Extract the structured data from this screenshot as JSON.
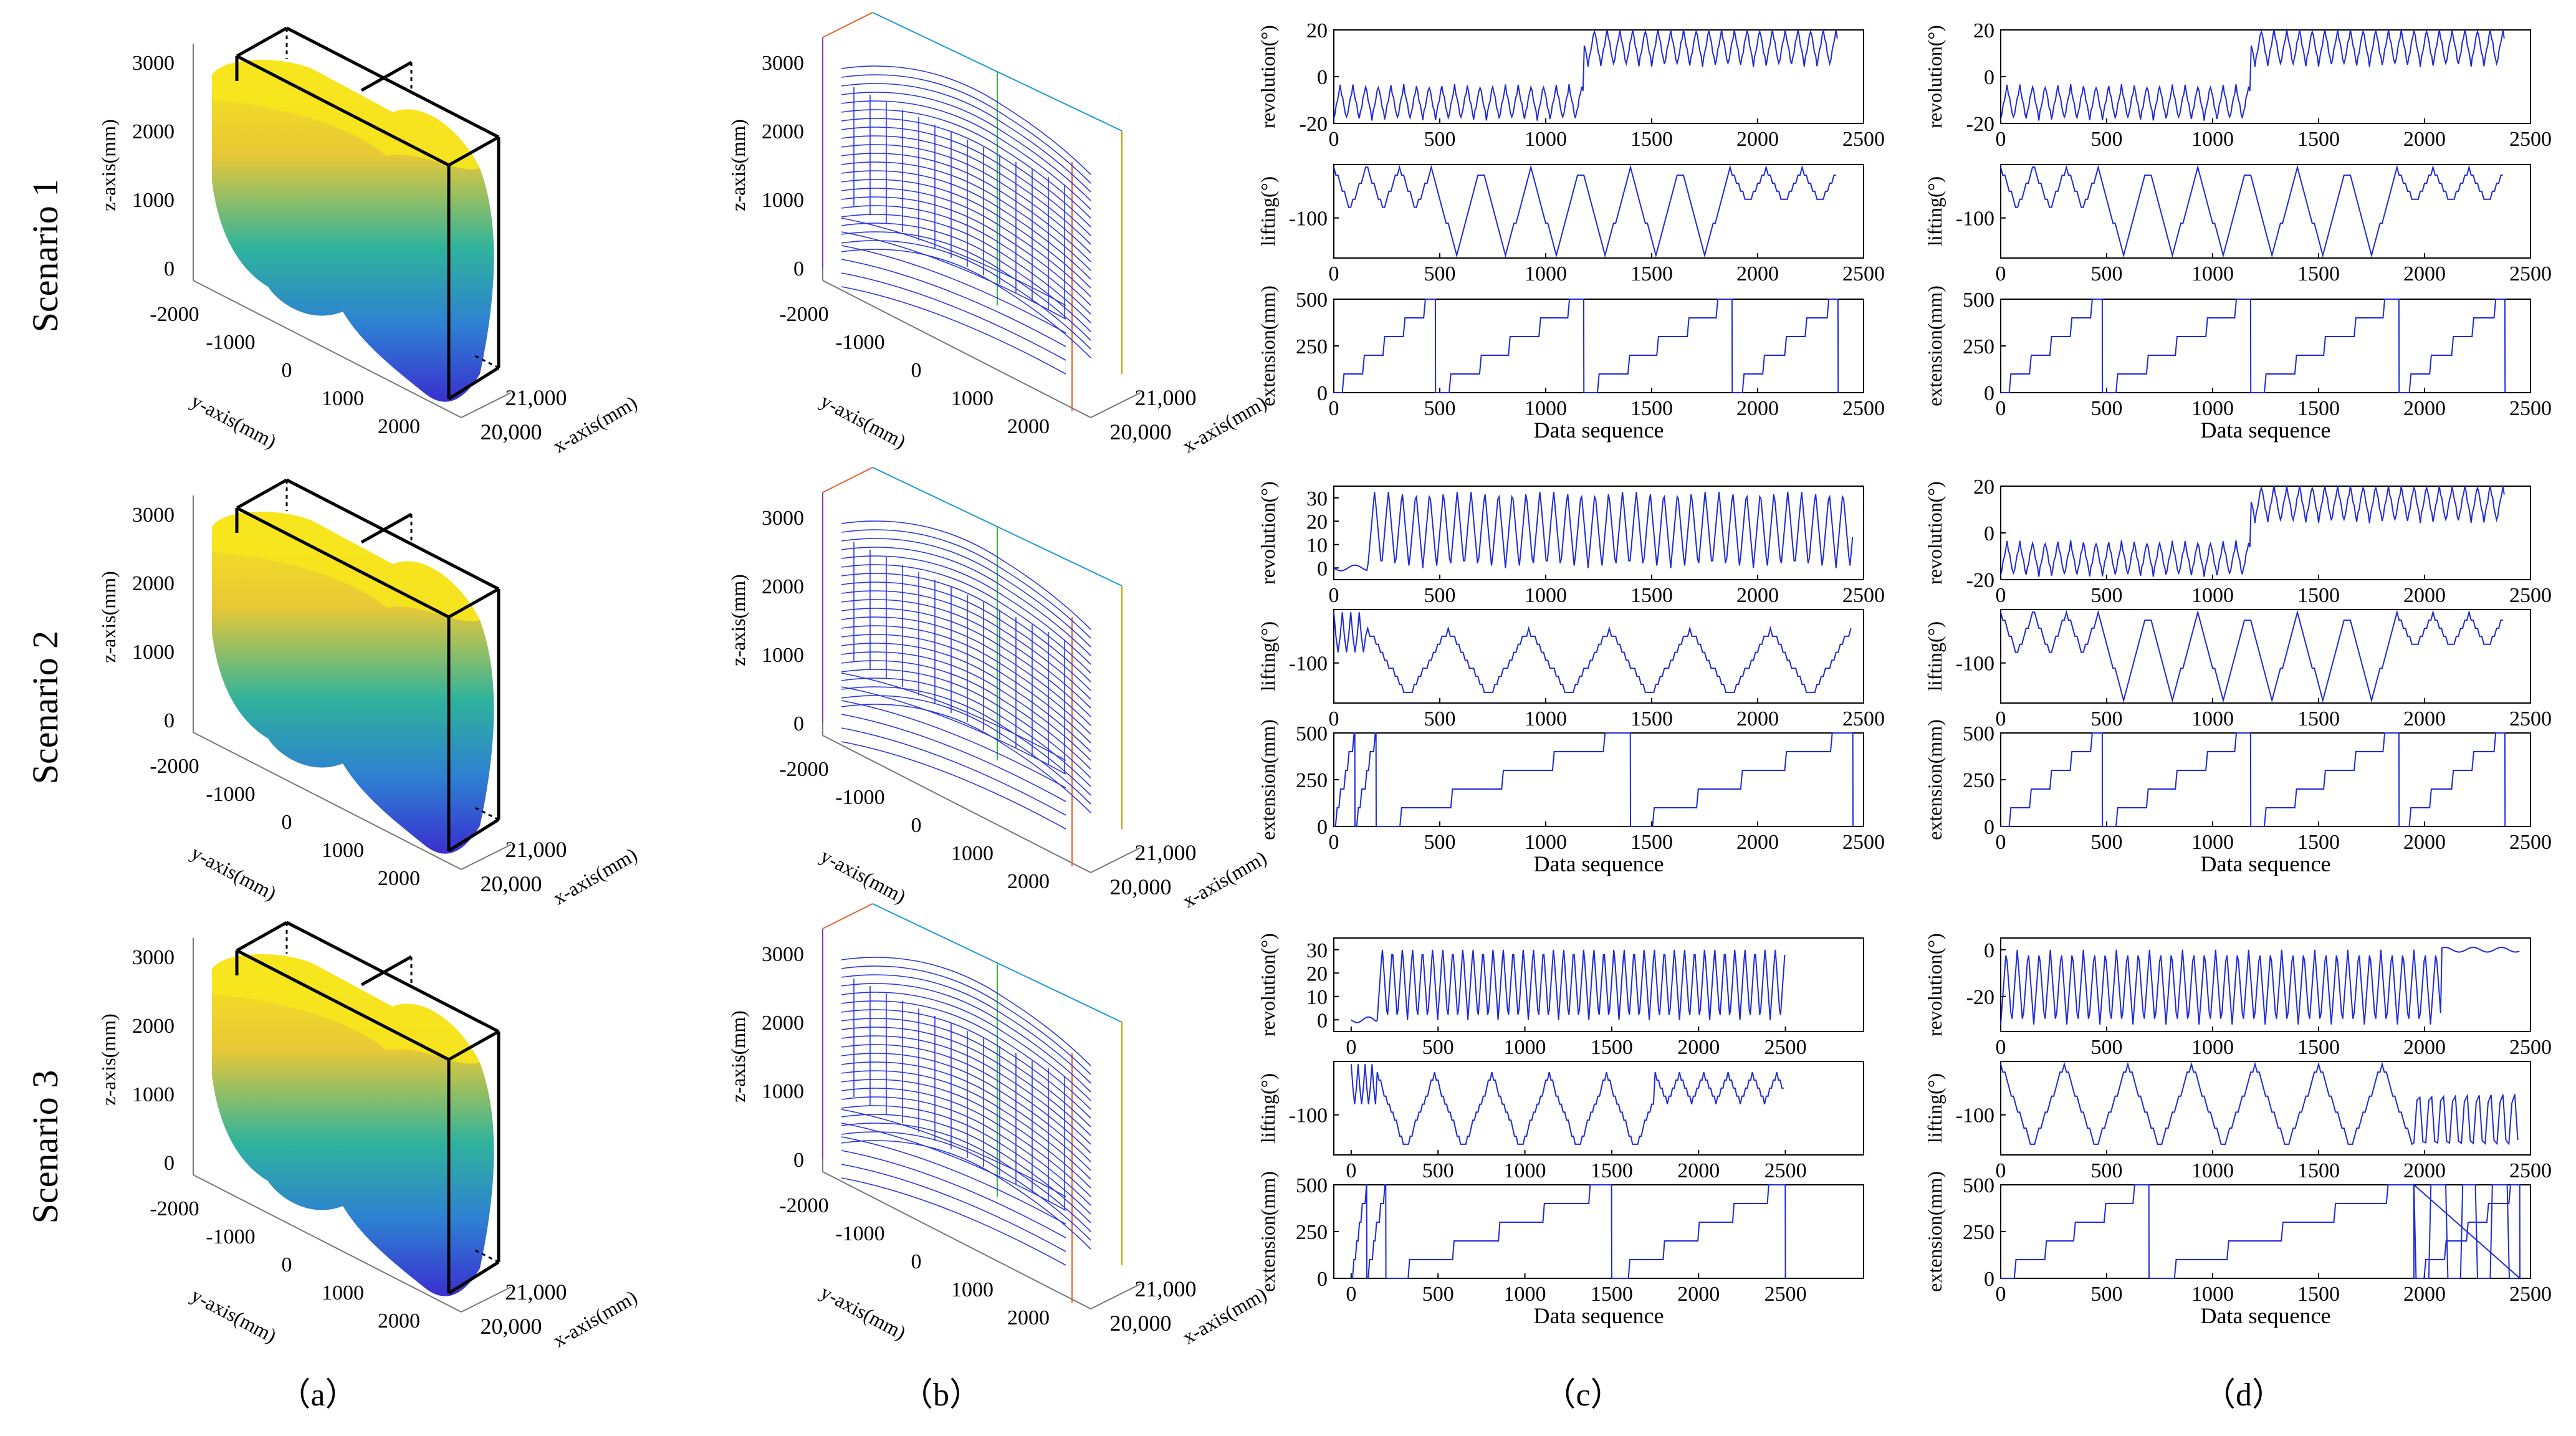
{
  "colors": {
    "trace": "#1f2bd6",
    "axis": "#000000",
    "surface_top": "#f5e51b",
    "surface_mid": "#21a8a0",
    "surface_bottom": "#3b3bcc",
    "line_blue": "#2a36e0"
  },
  "rows": [
    {
      "label": "Scenario 1"
    },
    {
      "label": "Scenario 2"
    },
    {
      "label": "Scenario 3"
    }
  ],
  "column_labels": [
    "（a）",
    "（b）",
    "（c）",
    "（d）"
  ],
  "axes3d": {
    "z_label": "z-axis(mm)",
    "y_label": "y-axis(mm)",
    "x_label": "x-axis(mm)",
    "z_ticks": [
      "0",
      "1000",
      "2000",
      "3000"
    ],
    "y_ticks": [
      "-2000",
      "-1000",
      "0",
      "1000",
      "2000"
    ],
    "x_ticks": [
      "20,000",
      "21,000"
    ]
  },
  "panel_b_x_labels": [
    "x-axis(mm)",
    "x-axis(mm)",
    "x-axis(mm)"
  ],
  "chart_data": [
    {
      "type": "line",
      "id": "c1",
      "xlabel": "Data sequence",
      "subplots": [
        {
          "ylabel": "revolution(°)",
          "xlim": [
            0,
            2500
          ],
          "ylim": [
            -20,
            20
          ],
          "yticks": [
            -20,
            0,
            20
          ],
          "pattern": "revo_step",
          "n": 2380,
          "step_at": 1180,
          "before": [
            -18,
            -4
          ],
          "after": [
            5,
            20
          ],
          "period": 60
        },
        {
          "ylabel": "lifting(°)",
          "xlim": [
            0,
            2500
          ],
          "ylim": [
            -160,
            -20
          ],
          "yticks": [
            -100
          ],
          "pattern": "lift",
          "n": 2380,
          "segments": [
            [
              0,
              460,
              -25,
              -85,
              155
            ],
            [
              460,
              1870,
              -25,
              -155,
              235
            ],
            [
              1870,
              2380,
              -25,
              -80,
              170
            ]
          ]
        },
        {
          "ylabel": "extension(mm)",
          "xlim": [
            0,
            2500
          ],
          "ylim": [
            0,
            500
          ],
          "yticks": [
            0,
            250,
            500
          ],
          "xticks": [
            0,
            500,
            1000,
            1500,
            2000,
            2500
          ],
          "pattern": "ext",
          "n": 2380,
          "resets": [
            0,
            480,
            1180,
            1880
          ]
        }
      ]
    },
    {
      "type": "line",
      "id": "d1",
      "xlabel": "Data sequence",
      "subplots": [
        {
          "ylabel": "revolution(°)",
          "xlim": [
            0,
            2500
          ],
          "ylim": [
            -20,
            20
          ],
          "yticks": [
            -20,
            0,
            20
          ],
          "pattern": "revo_step",
          "n": 2380,
          "step_at": 1180,
          "before": [
            -18,
            -4
          ],
          "after": [
            5,
            20
          ],
          "period": 60
        },
        {
          "ylabel": "lifting(°)",
          "xlim": [
            0,
            2500
          ],
          "ylim": [
            -160,
            -20
          ],
          "yticks": [
            -100
          ],
          "pattern": "lift",
          "n": 2380,
          "segments": [
            [
              0,
              460,
              -25,
              -85,
              155
            ],
            [
              460,
              1870,
              -25,
              -155,
              235
            ],
            [
              1870,
              2380,
              -25,
              -80,
              170
            ]
          ]
        },
        {
          "ylabel": "extension(mm)",
          "xlim": [
            0,
            2500
          ],
          "ylim": [
            0,
            500
          ],
          "yticks": [
            0,
            250,
            500
          ],
          "xticks": [
            0,
            500,
            1000,
            1500,
            2000,
            2500
          ],
          "pattern": "ext",
          "n": 2380,
          "resets": [
            0,
            480,
            1180,
            1880
          ]
        }
      ]
    },
    {
      "type": "line",
      "id": "c2",
      "xlabel": "Data sequence",
      "subplots": [
        {
          "ylabel": "revolution(°)",
          "xlim": [
            0,
            2500
          ],
          "ylim": [
            -5,
            35
          ],
          "yticks": [
            0,
            10,
            20,
            30
          ],
          "pattern": "revo_start",
          "n": 2450,
          "start_at": 160,
          "low": 0,
          "high": 33,
          "period": 65
        },
        {
          "ylabel": "lifting(°)",
          "xlim": [
            0,
            2500
          ],
          "ylim": [
            -160,
            -20
          ],
          "yticks": [
            -100
          ],
          "pattern": "lift",
          "n": 2450,
          "segments": [
            [
              0,
              160,
              -25,
              -90,
              40
            ],
            [
              160,
              2450,
              -50,
              -150,
              380
            ]
          ]
        },
        {
          "ylabel": "extension(mm)",
          "xlim": [
            0,
            2500
          ],
          "ylim": [
            0,
            500
          ],
          "yticks": [
            0,
            250,
            500
          ],
          "xticks": [
            0,
            500,
            1000,
            1500,
            2000,
            2500
          ],
          "pattern": "ext",
          "n": 2450,
          "resets": [
            0,
            100,
            200,
            1400,
            2450
          ],
          "slow": true
        }
      ]
    },
    {
      "type": "line",
      "id": "d2",
      "xlabel": "Data sequence",
      "subplots": [
        {
          "ylabel": "revolution(°)",
          "xlim": [
            0,
            2500
          ],
          "ylim": [
            -20,
            20
          ],
          "yticks": [
            -20,
            0,
            20
          ],
          "pattern": "revo_step",
          "n": 2380,
          "step_at": 1180,
          "before": [
            -18,
            -4
          ],
          "after": [
            5,
            20
          ],
          "period": 60
        },
        {
          "ylabel": "lifting(°)",
          "xlim": [
            0,
            2500
          ],
          "ylim": [
            -160,
            -20
          ],
          "yticks": [
            -100
          ],
          "pattern": "lift",
          "n": 2380,
          "segments": [
            [
              0,
              460,
              -25,
              -85,
              155
            ],
            [
              460,
              1870,
              -25,
              -155,
              235
            ],
            [
              1870,
              2380,
              -25,
              -80,
              170
            ]
          ]
        },
        {
          "ylabel": "extension(mm)",
          "xlim": [
            0,
            2500
          ],
          "ylim": [
            0,
            500
          ],
          "yticks": [
            0,
            250,
            500
          ],
          "xticks": [
            0,
            500,
            1000,
            1500,
            2000,
            2500
          ],
          "pattern": "ext",
          "n": 2380,
          "resets": [
            0,
            480,
            1180,
            1880
          ]
        }
      ]
    },
    {
      "type": "line",
      "id": "c3",
      "xlabel": "Data sequence",
      "subplots": [
        {
          "ylabel": "revolution(°)",
          "xlim": [
            -100,
            2950
          ],
          "ylim": [
            -5,
            35
          ],
          "yticks": [
            0,
            10,
            20,
            30
          ],
          "pattern": "revo_start",
          "n": 2500,
          "start_at": 150,
          "low": 0,
          "high": 31,
          "period": 58
        },
        {
          "ylabel": "lifting(°)",
          "xlim": [
            -100,
            2950
          ],
          "ylim": [
            -160,
            -20
          ],
          "yticks": [
            -100
          ],
          "pattern": "lift",
          "n": 2500,
          "segments": [
            [
              0,
              150,
              -25,
              -90,
              40
            ],
            [
              150,
              1750,
              -40,
              -150,
              330
            ],
            [
              1750,
              2500,
              -40,
              -80,
              140
            ]
          ]
        },
        {
          "ylabel": "extension(mm)",
          "xlim": [
            -100,
            2950
          ],
          "ylim": [
            0,
            500
          ],
          "yticks": [
            0,
            250,
            500
          ],
          "xticks": [
            0,
            500,
            1000,
            1500,
            2000,
            2500
          ],
          "pattern": "ext",
          "n": 2500,
          "resets": [
            0,
            90,
            200,
            1500,
            2500
          ],
          "slow": true
        }
      ]
    },
    {
      "type": "line",
      "id": "d3",
      "xlabel": "Data sequence",
      "subplots": [
        {
          "ylabel": "revolution(°)",
          "xlim": [
            0,
            2500
          ],
          "ylim": [
            -35,
            5
          ],
          "yticks": [
            -20,
            0
          ],
          "pattern": "revo_end",
          "n": 2450,
          "end_at": 2080,
          "low": -32,
          "high": 0,
          "period": 52
        },
        {
          "ylabel": "lifting(°)",
          "xlim": [
            0,
            2500
          ],
          "ylim": [
            -160,
            -20
          ],
          "yticks": [
            -100
          ],
          "pattern": "lift_noisy",
          "n": 2450,
          "segments": [
            [
              0,
              1950,
              -25,
              -150,
              300
            ]
          ],
          "noise_from": 1950
        },
        {
          "ylabel": "extension(mm)",
          "xlim": [
            0,
            2500
          ],
          "ylim": [
            0,
            500
          ],
          "yticks": [
            0,
            250,
            500
          ],
          "xticks": [
            0,
            500,
            1000,
            1500,
            2000,
            2500
          ],
          "pattern": "ext_noisy",
          "n": 2450,
          "resets": [
            0,
            700,
            1950
          ],
          "noise_from": 1950
        }
      ]
    }
  ]
}
